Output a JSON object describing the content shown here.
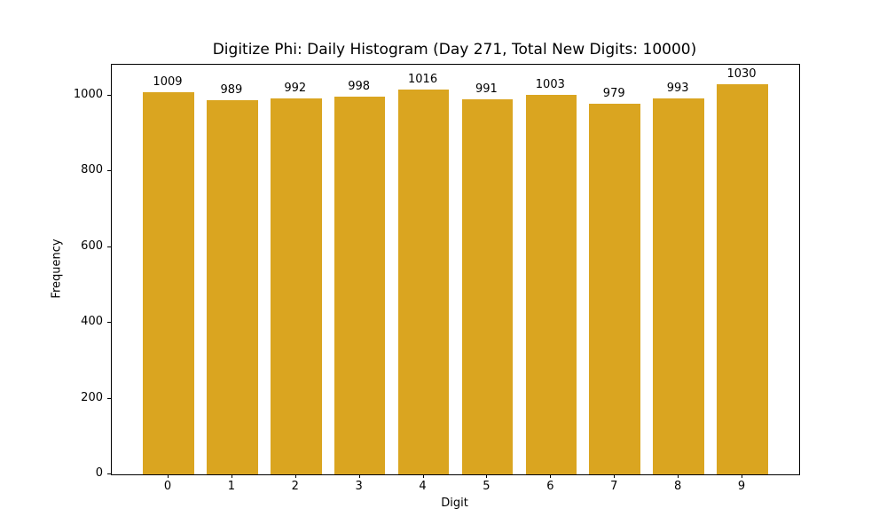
{
  "chart_data": {
    "type": "bar",
    "title": "Digitize Phi: Daily Histogram (Day 271, Total New Digits: 10000)",
    "xlabel": "Digit",
    "ylabel": "Frequency",
    "categories": [
      "0",
      "1",
      "2",
      "3",
      "4",
      "5",
      "6",
      "7",
      "8",
      "9"
    ],
    "values": [
      1009,
      989,
      992,
      998,
      1016,
      991,
      1003,
      979,
      993,
      1030
    ],
    "bar_value_labels": [
      "1009",
      "989",
      "992",
      "998",
      "1016",
      "991",
      "1003",
      "979",
      "993",
      "1030"
    ],
    "yticks": [
      0,
      200,
      400,
      600,
      800,
      1000
    ],
    "ylim": [
      0,
      1081.5
    ],
    "xlim": [
      -0.89,
      9.89
    ],
    "bar_width_units": 0.8,
    "bar_color": "#DAA520",
    "axis_color": "#000000",
    "background_color": "#FFFFFF",
    "grid": false,
    "legend_position": "none"
  }
}
